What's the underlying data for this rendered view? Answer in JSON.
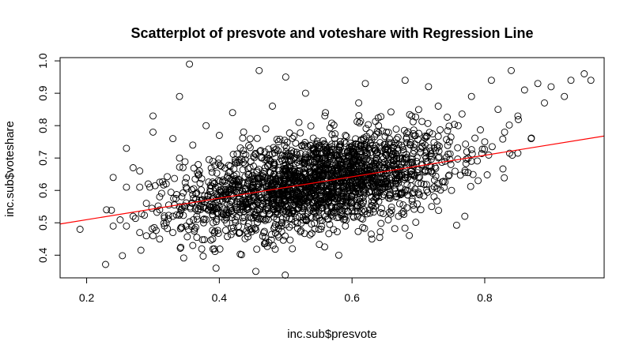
{
  "chart_data": {
    "type": "scatter",
    "title": "Scatterplot of presvote and voteshare with Regression Line",
    "xlabel": "inc.sub$presvote",
    "ylabel": "inc.sub$voteshare",
    "xlim": [
      0.16,
      0.98
    ],
    "ylim": [
      0.33,
      1.01
    ],
    "x_ticks": [
      0.2,
      0.4,
      0.6,
      0.8
    ],
    "x_tick_labels": [
      "0.2",
      "0.4",
      "0.6",
      "0.8"
    ],
    "y_ticks": [
      0.4,
      0.5,
      0.6,
      0.7,
      0.8,
      0.9,
      1.0
    ],
    "y_tick_labels": [
      "0.4",
      "0.5",
      "0.6",
      "0.7",
      "0.8",
      "0.9",
      "1.0"
    ],
    "grid": false,
    "legend": "none",
    "regression_line": {
      "intercept": 0.4434,
      "slope": 0.3312,
      "color": "#ff0000"
    },
    "point_color": "#000000",
    "points": [
      [
        0.19,
        0.48
      ],
      [
        0.23,
        0.54
      ],
      [
        0.24,
        0.49
      ],
      [
        0.24,
        0.64
      ],
      [
        0.26,
        0.49
      ],
      [
        0.26,
        0.73
      ],
      [
        0.26,
        0.61
      ],
      [
        0.27,
        0.52
      ],
      [
        0.27,
        0.67
      ],
      [
        0.28,
        0.66
      ],
      [
        0.28,
        0.61
      ],
      [
        0.28,
        0.47
      ],
      [
        0.29,
        0.46
      ],
      [
        0.29,
        0.56
      ],
      [
        0.3,
        0.83
      ],
      [
        0.3,
        0.78
      ],
      [
        0.3,
        0.46
      ],
      [
        0.31,
        0.45
      ],
      [
        0.31,
        0.54
      ],
      [
        0.31,
        0.58
      ],
      [
        0.32,
        0.5
      ],
      [
        0.32,
        0.62
      ],
      [
        0.33,
        0.76
      ],
      [
        0.33,
        0.47
      ],
      [
        0.33,
        0.52
      ],
      [
        0.34,
        0.89
      ],
      [
        0.34,
        0.7
      ],
      [
        0.34,
        0.55
      ],
      [
        0.35,
        0.49
      ],
      [
        0.35,
        0.61
      ],
      [
        0.355,
        0.99
      ],
      [
        0.36,
        0.74
      ],
      [
        0.36,
        0.43
      ],
      [
        0.37,
        0.57
      ],
      [
        0.37,
        0.66
      ],
      [
        0.38,
        0.8
      ],
      [
        0.38,
        0.51
      ],
      [
        0.39,
        0.69
      ],
      [
        0.39,
        0.45
      ],
      [
        0.395,
        0.36
      ],
      [
        0.4,
        0.6
      ],
      [
        0.4,
        0.77
      ],
      [
        0.41,
        0.53
      ],
      [
        0.42,
        0.63
      ],
      [
        0.42,
        0.84
      ],
      [
        0.43,
        0.47
      ],
      [
        0.44,
        0.71
      ],
      [
        0.45,
        0.55
      ],
      [
        0.455,
        0.35
      ],
      [
        0.46,
        0.97
      ],
      [
        0.46,
        0.62
      ],
      [
        0.47,
        0.79
      ],
      [
        0.47,
        0.44
      ],
      [
        0.48,
        0.86
      ],
      [
        0.49,
        0.57
      ],
      [
        0.5,
        0.95
      ],
      [
        0.5,
        0.68
      ],
      [
        0.51,
        0.42
      ],
      [
        0.52,
        0.81
      ],
      [
        0.53,
        0.9
      ],
      [
        0.53,
        0.6
      ],
      [
        0.54,
        0.73
      ],
      [
        0.55,
        0.48
      ],
      [
        0.56,
        0.84
      ],
      [
        0.57,
        0.65
      ],
      [
        0.58,
        0.4
      ],
      [
        0.59,
        0.77
      ],
      [
        0.6,
        0.58
      ],
      [
        0.61,
        0.87
      ],
      [
        0.62,
        0.93
      ],
      [
        0.62,
        0.67
      ],
      [
        0.63,
        0.45
      ],
      [
        0.64,
        0.8
      ],
      [
        0.65,
        0.61
      ],
      [
        0.66,
        0.71
      ],
      [
        0.67,
        0.52
      ],
      [
        0.68,
        0.94
      ],
      [
        0.69,
        0.83
      ],
      [
        0.7,
        0.64
      ],
      [
        0.71,
        0.74
      ],
      [
        0.72,
        0.55
      ],
      [
        0.73,
        0.86
      ],
      [
        0.74,
        0.69
      ],
      [
        0.75,
        0.6
      ],
      [
        0.76,
        0.8
      ],
      [
        0.77,
        0.52
      ],
      [
        0.78,
        0.89
      ],
      [
        0.79,
        0.63
      ],
      [
        0.8,
        0.75
      ],
      [
        0.81,
        0.94
      ],
      [
        0.82,
        0.85
      ],
      [
        0.83,
        0.78
      ],
      [
        0.84,
        0.97
      ],
      [
        0.85,
        0.83
      ],
      [
        0.86,
        0.91
      ],
      [
        0.87,
        0.76
      ],
      [
        0.88,
        0.93
      ],
      [
        0.89,
        0.87
      ],
      [
        0.9,
        0.92
      ],
      [
        0.92,
        0.89
      ],
      [
        0.93,
        0.94
      ],
      [
        0.95,
        0.96
      ],
      [
        0.96,
        0.94
      ]
    ],
    "dense_region": {
      "center": [
        0.55,
        0.65
      ],
      "x_spread": 0.1,
      "y_spread": 0.07,
      "count": 2200
    }
  }
}
